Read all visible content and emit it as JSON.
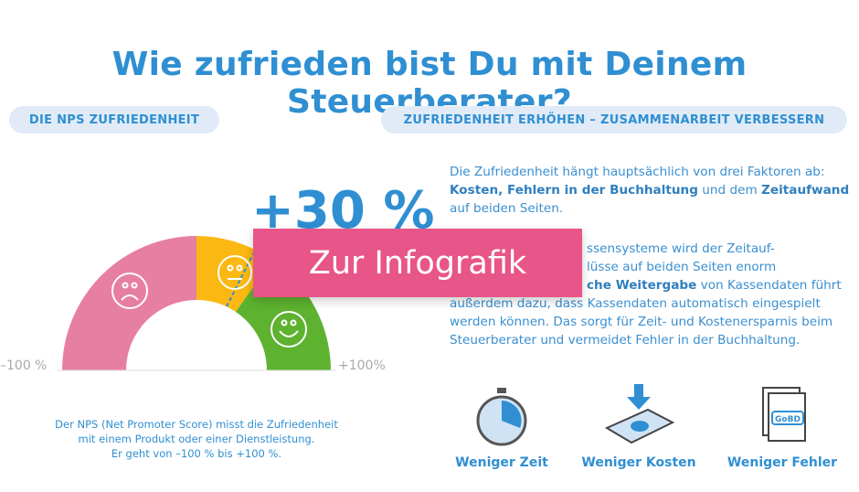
{
  "title": "Wie zufrieden bist Du mit Deinem Steuerberater?",
  "left_pill": "DIE NPS ZUFRIEDENHEIT",
  "right_pill": "ZUFRIEDENHEIT ERHÖHEN – ZUSAMMENARBEIT VERBESSERN",
  "gauge": {
    "value_label": "+30 %",
    "value": 30,
    "min_label": "–100 %",
    "max_label": "+100%",
    "colors": {
      "negative": "#e77fa3",
      "neutral": "#fbb812",
      "positive": "#5db22f"
    }
  },
  "nps_note": [
    "Der NPS (Net Promoter Score) misst die Zufriedenheit",
    "mit einem Produkt oder einer Dienstleistung.",
    "Er geht von –100 % bis +100 %."
  ],
  "para1": {
    "a": "Die Zufriedenheit hängt hauptsächlich von drei Faktoren ab: ",
    "b1": "Kosten, Fehlern in der Buchhaltung",
    "c": " und dem ",
    "b2": "Zeitaufwand",
    "d": " auf beiden Seiten."
  },
  "para2": {
    "a": "ssensysteme wird der Zeitauf- ",
    "a2": "lüsse auf beiden Seiten enorm ",
    "b": "che Weitergabe",
    "c": " von Kassendaten führt außerdem dazu, dass Kassendaten automatisch eingespielt werden können. Das sorgt für Zeit- und Kostenersparnis beim Steuerberater und vermeidet Fehler in der Buchhaltung."
  },
  "cta": "Zur Infografik",
  "features": [
    {
      "label": "Weniger Zeit",
      "icon": "stopwatch-icon"
    },
    {
      "label": "Weniger Kosten",
      "icon": "money-icon"
    },
    {
      "label": "Weniger Fehler",
      "icon": "gobd-document-icon"
    }
  ],
  "gobd": "GoBD"
}
